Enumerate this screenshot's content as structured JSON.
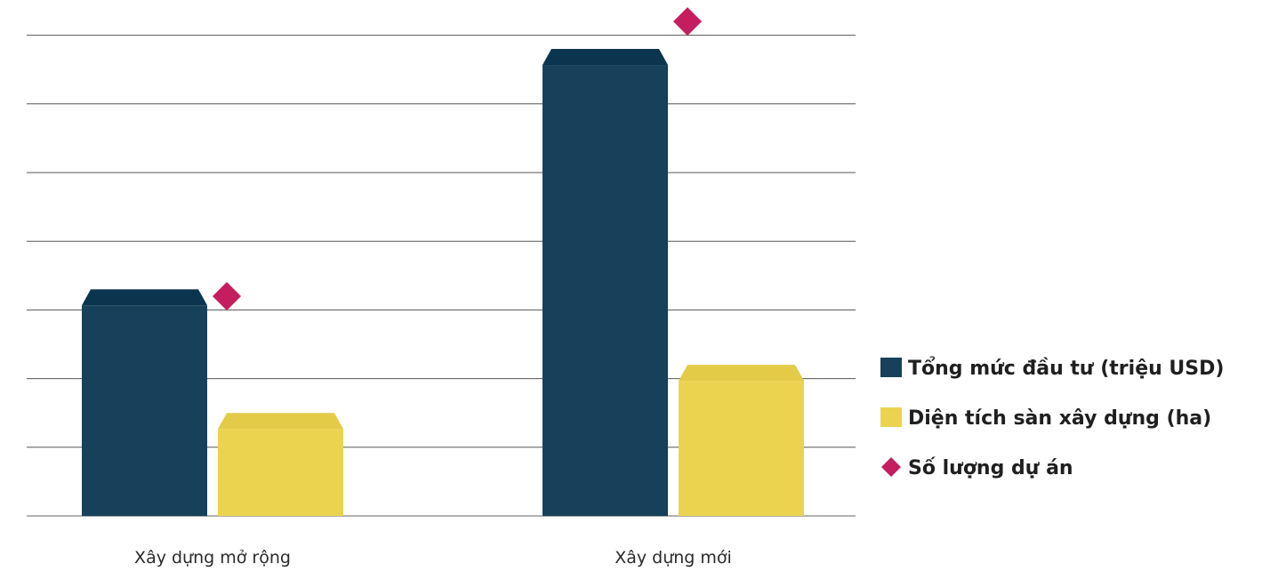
{
  "chart_data": {
    "type": "bar",
    "title": "",
    "xlabel": "",
    "ylabel": "",
    "categories": [
      "Xây dựng mở rộng",
      "Xây dựng mới"
    ],
    "ylim": [
      0,
      7
    ],
    "grid": true,
    "legend_position": "right",
    "series": [
      {
        "name": "Tổng mức đầu tư (triệu USD)",
        "kind": "bar",
        "color": "#17415a",
        "values": [
          3.3,
          6.8
        ]
      },
      {
        "name": "Diện tích sàn xây dựng (ha)",
        "kind": "bar",
        "color": "#ebd34f",
        "values": [
          1.5,
          2.2
        ]
      },
      {
        "name": "Số lượng dự án",
        "kind": "marker",
        "color": "#c41e5f",
        "values": [
          3.2,
          7.2
        ]
      }
    ]
  }
}
